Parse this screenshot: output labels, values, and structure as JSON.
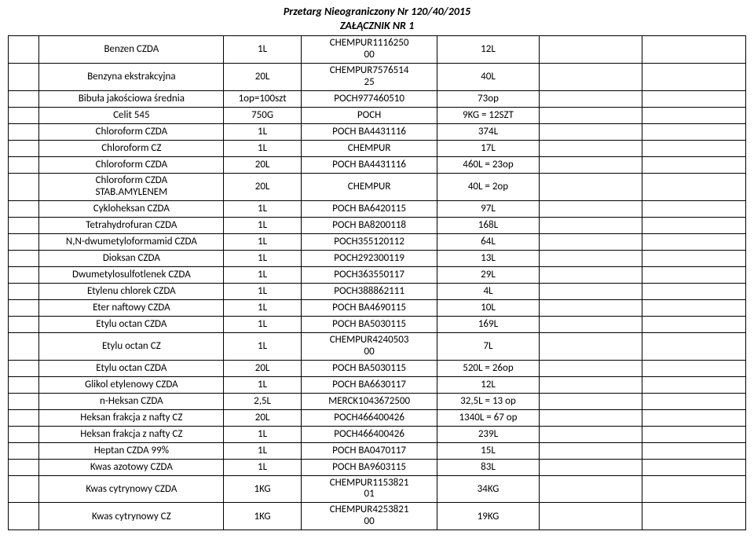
{
  "header": {
    "line1": "Przetarg Nieograniczony  Nr 120/40/2015",
    "line2": "ZAŁĄCZNIK NR 1"
  },
  "table": {
    "rows": [
      {
        "c0": "",
        "c1": "Benzen CZDA",
        "c2": "1L",
        "c3": "CHEMPUR1116250\n00",
        "c4": "12L",
        "c5": "",
        "c6": ""
      },
      {
        "c0": "",
        "c1": "Benzyna ekstrakcyjna",
        "c2": "20L",
        "c3": "CHEMPUR7576514\n25",
        "c4": "40L",
        "c5": "",
        "c6": ""
      },
      {
        "c0": "",
        "c1": "Bibuła jakościowa średnia",
        "c2": "1op=100szt",
        "c3": "POCH977460510",
        "c4": "73op",
        "c5": "",
        "c6": ""
      },
      {
        "c0": "",
        "c1": "Celit 545",
        "c2": "750G",
        "c3": "POCH",
        "c4": "9KG = 12SZT",
        "c5": "",
        "c6": ""
      },
      {
        "c0": "",
        "c1": "Chloroform CZDA",
        "c2": "1L",
        "c3": "POCH BA4431116",
        "c4": "374L",
        "c5": "",
        "c6": ""
      },
      {
        "c0": "",
        "c1": "Chloroform CZ",
        "c2": "1L",
        "c3": "CHEMPUR",
        "c4": "17L",
        "c5": "",
        "c6": ""
      },
      {
        "c0": "",
        "c1": "Chloroform CZDA",
        "c2": "20L",
        "c3": "POCH BA4431116",
        "c4": "460L = 23op",
        "c5": "",
        "c6": ""
      },
      {
        "c0": "",
        "c1": "Chloroform CZDA\nSTAB.AMYLENEM",
        "c2": "20L",
        "c3": "CHEMPUR",
        "c4": "40L = 2op",
        "c5": "",
        "c6": ""
      },
      {
        "c0": "",
        "c1": "Cykloheksan CZDA",
        "c2": "1L",
        "c3": "POCH BA6420115",
        "c4": "97L",
        "c5": "",
        "c6": ""
      },
      {
        "c0": "",
        "c1": "Tetrahydrofuran CZDA",
        "c2": "1L",
        "c3": "POCH BA8200118",
        "c4": "168L",
        "c5": "",
        "c6": ""
      },
      {
        "c0": "",
        "c1": "N,N-dwumetyloformamid CZDA",
        "c2": "1L",
        "c3": "POCH355120112",
        "c4": "64L",
        "c5": "",
        "c6": ""
      },
      {
        "c0": "",
        "c1": "Dioksan CZDA",
        "c2": "1L",
        "c3": "POCH292300119",
        "c4": "13L",
        "c5": "",
        "c6": ""
      },
      {
        "c0": "",
        "c1": "Dwumetylosulfotlenek CZDA",
        "c2": "1L",
        "c3": "POCH363550117",
        "c4": "29L",
        "c5": "",
        "c6": ""
      },
      {
        "c0": "",
        "c1": "Etylenu chlorek CZDA",
        "c2": "1L",
        "c3": "POCH388862111",
        "c4": "4L",
        "c5": "",
        "c6": ""
      },
      {
        "c0": "",
        "c1": "Eter naftowy CZDA",
        "c2": "1L",
        "c3": "POCH BA4690115",
        "c4": "10L",
        "c5": "",
        "c6": ""
      },
      {
        "c0": "",
        "c1": "Etylu octan CZDA",
        "c2": "1L",
        "c3": "POCH BA5030115",
        "c4": "169L",
        "c5": "",
        "c6": ""
      },
      {
        "c0": "",
        "c1": "Etylu octan CZ",
        "c2": "1L",
        "c3": "CHEMPUR4240503\n00",
        "c4": "7L",
        "c5": "",
        "c6": ""
      },
      {
        "c0": "",
        "c1": "Etylu octan CZDA",
        "c2": "20L",
        "c3": "POCH BA5030115",
        "c4": "520L = 26op",
        "c5": "",
        "c6": ""
      },
      {
        "c0": "",
        "c1": "Glikol etylenowy CZDA",
        "c2": "1L",
        "c3": "POCH BA6630117",
        "c4": "12L",
        "c5": "",
        "c6": ""
      },
      {
        "c0": "",
        "c1": "n-Heksan CZDA",
        "c2": "2,5L",
        "c3": "MERCK1043672500",
        "c4": "32,5L = 13 op",
        "c5": "",
        "c6": ""
      },
      {
        "c0": "",
        "c1": "Heksan frakcja z nafty CZ",
        "c2": "20L",
        "c3": "POCH466400426",
        "c4": "1340L = 67 op",
        "c5": "",
        "c6": ""
      },
      {
        "c0": "",
        "c1": "Heksan frakcja z nafty CZ",
        "c2": "1L",
        "c3": "POCH466400426",
        "c4": "239L",
        "c5": "",
        "c6": ""
      },
      {
        "c0": "",
        "c1": "Heptan CZDA 99%",
        "c2": "1L",
        "c3": "POCH BA0470117",
        "c4": "15L",
        "c5": "",
        "c6": ""
      },
      {
        "c0": "",
        "c1": "Kwas azotowy CZDA",
        "c2": "1L",
        "c3": "POCH BA9603115",
        "c4": "83L",
        "c5": "",
        "c6": ""
      },
      {
        "c0": "",
        "c1": "Kwas cytrynowy CZDA",
        "c2": "1KG",
        "c3": "CHEMPUR1153821\n01",
        "c4": "34KG",
        "c5": "",
        "c6": ""
      },
      {
        "c0": "",
        "c1": "Kwas cytrynowy CZ",
        "c2": "1KG",
        "c3": "CHEMPUR4253821\n00",
        "c4": "19KG",
        "c5": "",
        "c6": ""
      }
    ]
  }
}
